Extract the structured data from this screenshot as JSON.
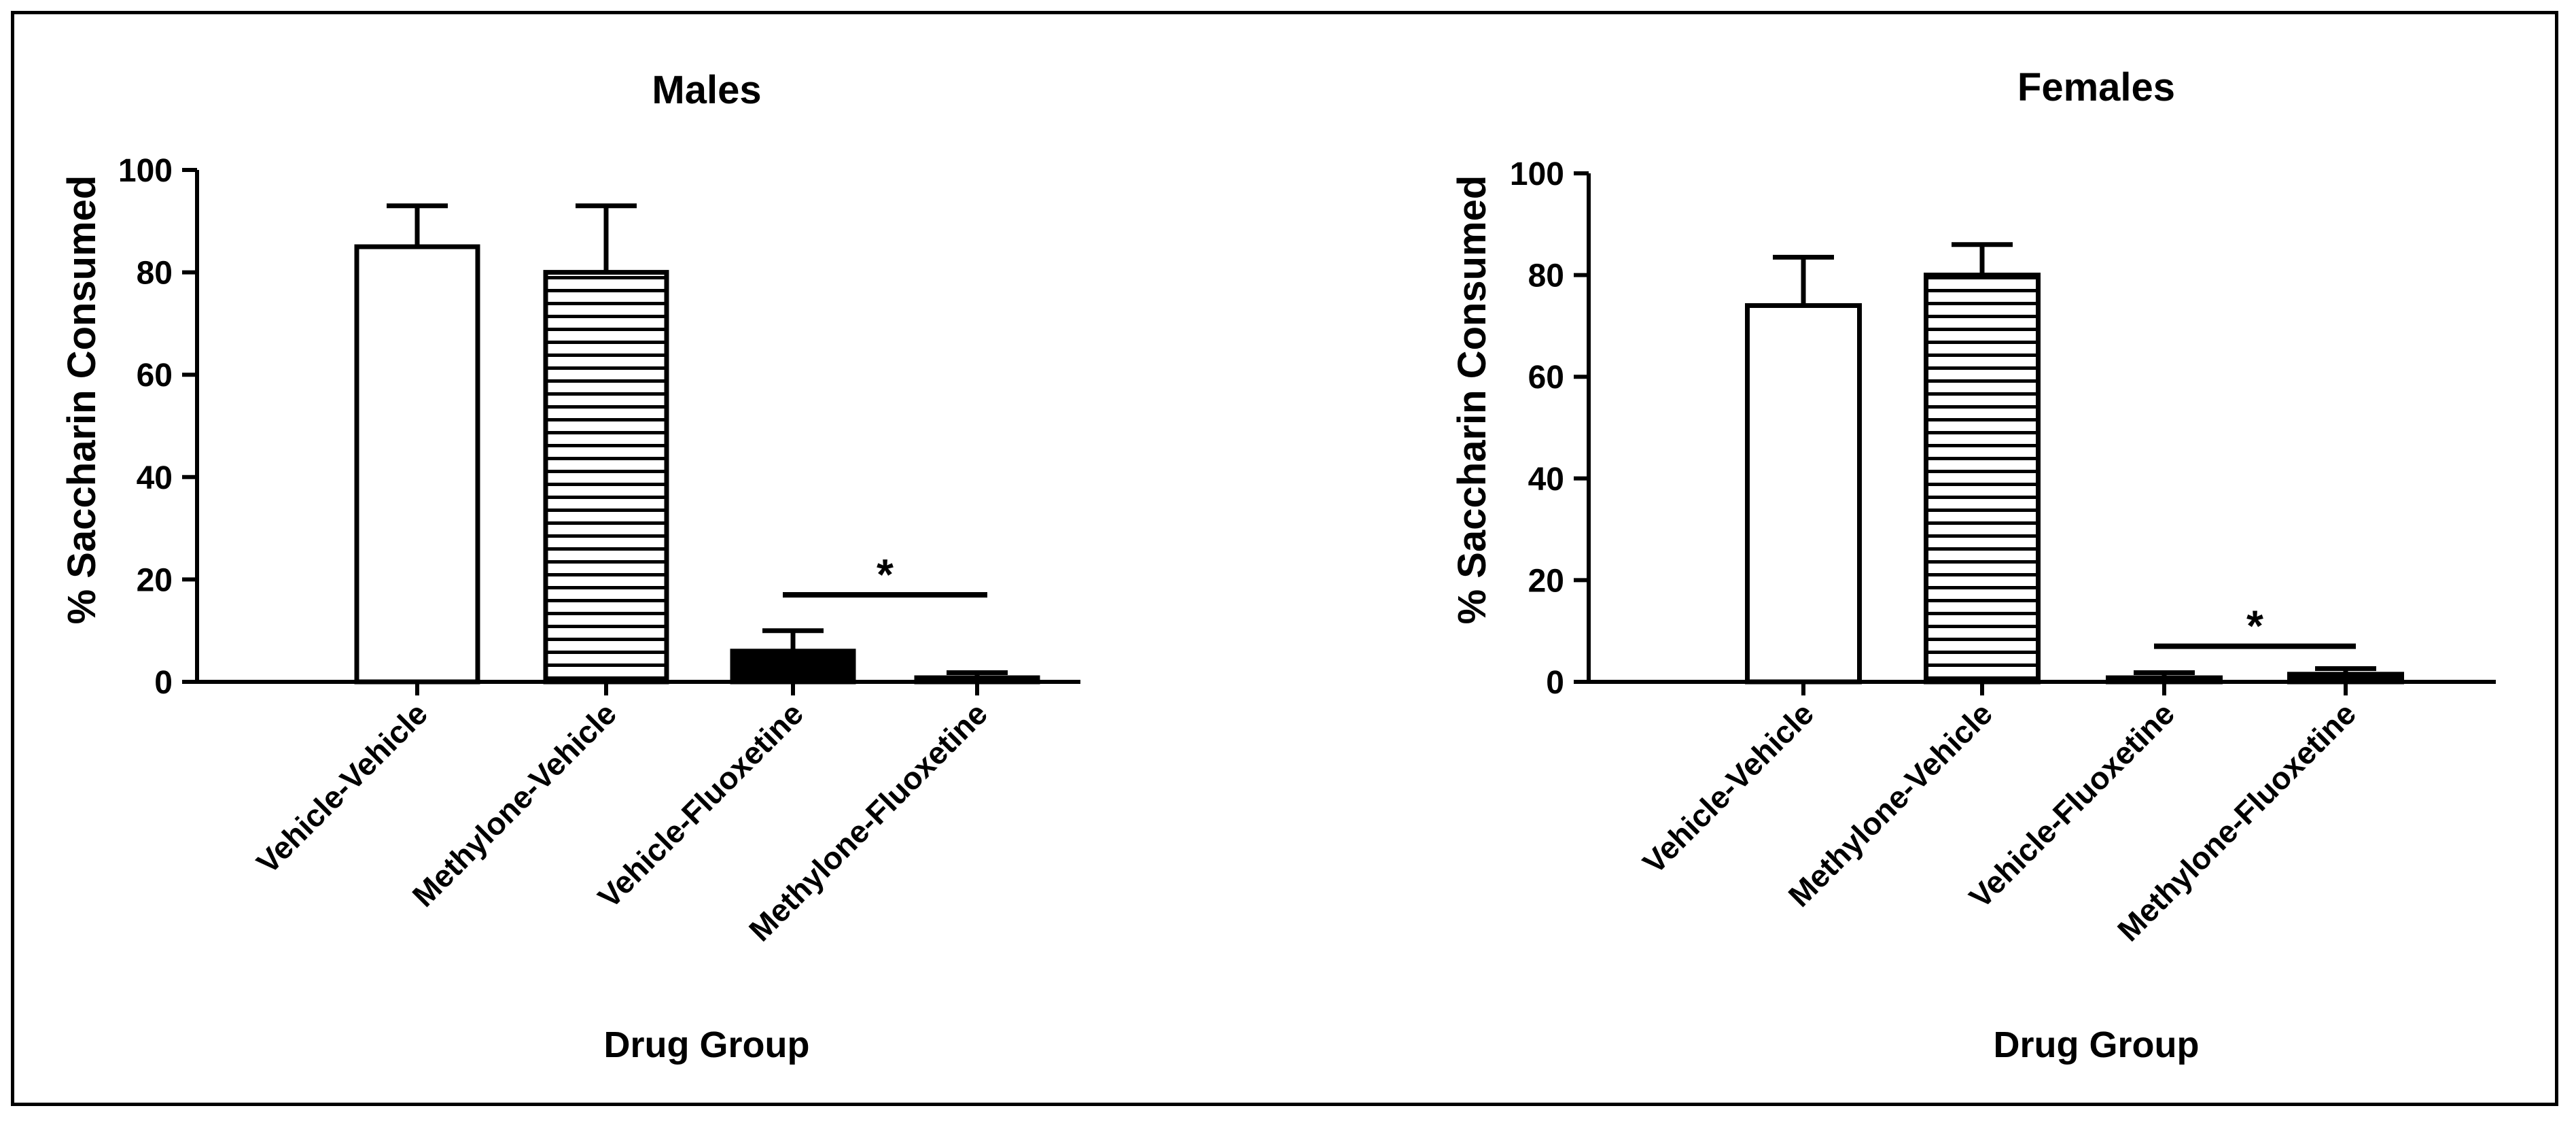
{
  "figure_border": true,
  "chart_data": [
    {
      "type": "bar",
      "title": "Males",
      "xlabel": "Drug Group",
      "ylabel": "% Saccharin  Consumed",
      "ylim": [
        0,
        100
      ],
      "yticks": [
        0,
        20,
        40,
        60,
        80,
        100
      ],
      "grid": false,
      "categories": [
        "Vehicle-Vehicle",
        "Methylone-Vehicle",
        "Vehicle-Fluoxetine",
        "Methylone-Fluoxetine"
      ],
      "values": [
        85,
        80,
        6,
        0.8
      ],
      "error_upper": [
        93,
        93,
        10,
        1.8
      ],
      "fills": [
        "white",
        "horizontal-lines",
        "black",
        "black"
      ],
      "annotation": {
        "text": "*",
        "value": 17,
        "span": [
          2,
          3
        ]
      }
    },
    {
      "type": "bar",
      "title": "Females",
      "xlabel": "Drug Group",
      "ylabel": "% Saccharin  Consumed",
      "ylim": [
        0,
        100
      ],
      "yticks": [
        0,
        20,
        40,
        60,
        80,
        100
      ],
      "grid": false,
      "categories": [
        "Vehicle-Vehicle",
        "Methylone-Vehicle",
        "Vehicle-Fluoxetine",
        "Methylone-Fluoxetine"
      ],
      "values": [
        74,
        80,
        0.8,
        1.5
      ],
      "error_upper": [
        83.5,
        86,
        1.8,
        2.6
      ],
      "fills": [
        "white",
        "horizontal-lines",
        "black",
        "black"
      ],
      "annotation": {
        "text": "*",
        "value": 7,
        "span": [
          2,
          3
        ]
      }
    }
  ]
}
